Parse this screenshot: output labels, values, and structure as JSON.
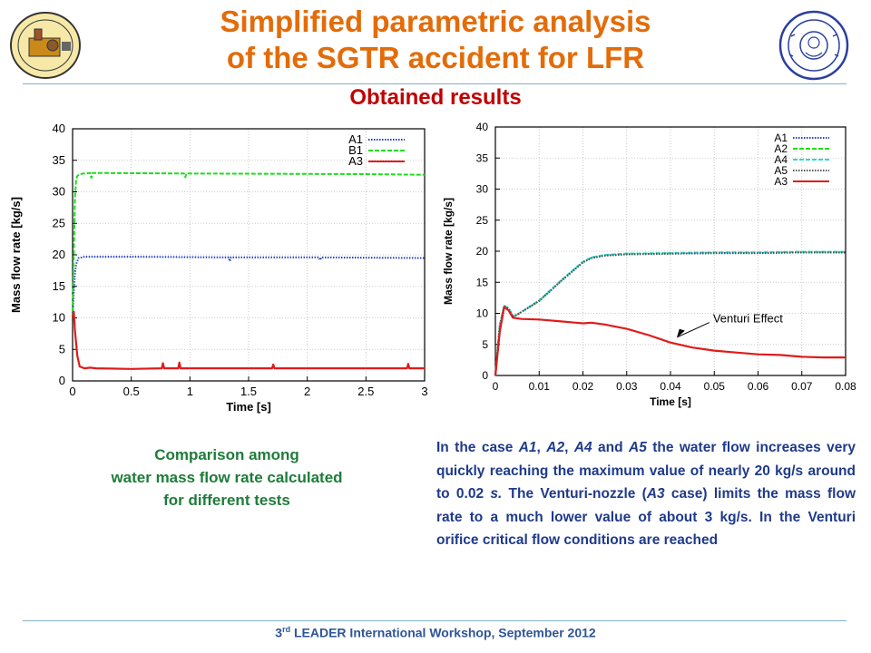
{
  "slide": {
    "title_line1": "Simplified parametric analysis",
    "title_line2": "of the SGTR accident for LFR",
    "subtitle": "Obtained results",
    "caption": [
      "Comparison among",
      "water mass flow rate calculated",
      "for different tests"
    ],
    "description": {
      "parts": [
        {
          "text": "In the case ",
          "italic": false
        },
        {
          "text": "A1",
          "italic": true
        },
        {
          "text": ", ",
          "italic": false
        },
        {
          "text": "A2",
          "italic": true
        },
        {
          "text": ", ",
          "italic": false
        },
        {
          "text": "A4",
          "italic": true
        },
        {
          "text": " and ",
          "italic": false
        },
        {
          "text": "A5",
          "italic": true
        },
        {
          "text": " the water flow increases very quickly reaching the maximum value of nearly 20 kg/s around to 0.02 ",
          "italic": false
        },
        {
          "text": "s.",
          "italic": true
        },
        {
          "text": " The Venturi-nozzle (",
          "italic": false
        },
        {
          "text": "A3",
          "italic": true
        },
        {
          "text": " case) limits the mass flow rate to a much lower value of about 3 kg/s. In the Venturi orifice critical flow conditions are reached",
          "italic": false
        }
      ]
    },
    "footer": {
      "prefix": "3",
      "sup": "rd",
      "rest": " LEADER International Workshop, September 2012"
    }
  },
  "chart_data": [
    {
      "type": "line",
      "xlabel": "Time [s]",
      "ylabel": "Mass flow rate [kg/s]",
      "xlim": [
        0,
        3
      ],
      "ylim": [
        0,
        40
      ],
      "xticks": [
        0,
        0.5,
        1,
        1.5,
        2,
        2.5,
        3
      ],
      "yticks": [
        0,
        5,
        10,
        15,
        20,
        25,
        30,
        35,
        40
      ],
      "grid": true,
      "legend_position": "top-right",
      "series": [
        {
          "name": "A1",
          "color": "#1f3fbf",
          "dash": "dotted",
          "x": [
            0,
            0.01,
            0.02,
            0.03,
            0.05,
            0.08,
            0.1,
            0.5,
            1.33,
            1.34,
            1.35,
            2.1,
            2.11,
            2.12,
            3.0
          ],
          "y": [
            10,
            14,
            17,
            18.5,
            19.5,
            19.6,
            19.7,
            19.7,
            19.6,
            19.0,
            19.6,
            19.6,
            19.2,
            19.6,
            19.5
          ]
        },
        {
          "name": "B1",
          "color": "#1fdc1f",
          "dash": "dashed",
          "x": [
            0,
            0.01,
            0.02,
            0.03,
            0.04,
            0.06,
            0.1,
            0.15,
            0.16,
            0.17,
            0.95,
            0.96,
            0.97,
            2.5,
            3.0
          ],
          "y": [
            10,
            20,
            29,
            32,
            32.5,
            32.8,
            32.9,
            33,
            32.2,
            33,
            32.9,
            32.3,
            32.9,
            32.8,
            32.7
          ]
        },
        {
          "name": "A3",
          "color": "#e01b1b",
          "dash": "solid",
          "x": [
            0,
            0.01,
            0.02,
            0.04,
            0.06,
            0.1,
            0.15,
            0.2,
            0.5,
            0.76,
            0.77,
            0.78,
            0.9,
            0.91,
            0.92,
            1.7,
            1.71,
            1.72,
            2.85,
            2.86,
            2.87,
            3.0
          ],
          "y": [
            10,
            11,
            8,
            4,
            2.3,
            2.0,
            2.1,
            2.0,
            1.9,
            2.0,
            2.8,
            2.0,
            2.0,
            2.9,
            2.0,
            2.0,
            2.6,
            2.0,
            2.0,
            2.7,
            2.0,
            2.0
          ]
        }
      ]
    },
    {
      "type": "line",
      "xlabel": "Time [s]",
      "ylabel": "Mass flow rate [kg/s]",
      "xlim": [
        0,
        0.08
      ],
      "ylim": [
        0,
        40
      ],
      "xticks": [
        0,
        0.01,
        0.02,
        0.03,
        0.04,
        0.05,
        0.06,
        0.07,
        0.08
      ],
      "yticks": [
        0,
        5,
        10,
        15,
        20,
        25,
        30,
        35,
        40
      ],
      "grid": true,
      "legend_position": "top-right",
      "annotation": {
        "text": "Venturi Effect",
        "x": 0.041,
        "y": 5.9
      },
      "series": [
        {
          "name": "A1",
          "color": "#1f3fbf",
          "dash": "dotted",
          "x": [
            0,
            0.001,
            0.002,
            0.003,
            0.004,
            0.005,
            0.01,
            0.015,
            0.02,
            0.022,
            0.025,
            0.03,
            0.04,
            0.05,
            0.06,
            0.07,
            0.08
          ],
          "y": [
            0,
            8,
            11.2,
            10.8,
            9.5,
            9.8,
            12,
            15.2,
            18.2,
            18.9,
            19.3,
            19.5,
            19.6,
            19.7,
            19.7,
            19.8,
            19.8
          ]
        },
        {
          "name": "A2",
          "color": "#1fdc1f",
          "dash": "dashed",
          "x": [
            0,
            0.001,
            0.002,
            0.003,
            0.004,
            0.005,
            0.01,
            0.015,
            0.02,
            0.022,
            0.025,
            0.03,
            0.04,
            0.05,
            0.06,
            0.07,
            0.08
          ],
          "y": [
            0,
            8,
            11.2,
            10.8,
            9.5,
            9.8,
            12,
            15.3,
            18.3,
            19.0,
            19.4,
            19.6,
            19.7,
            19.8,
            19.8,
            19.9,
            19.9
          ]
        },
        {
          "name": "A4",
          "color": "#2fd6d6",
          "dash": "dashed",
          "x": [
            0,
            0.001,
            0.002,
            0.003,
            0.004,
            0.005,
            0.01,
            0.015,
            0.02,
            0.022,
            0.025,
            0.03,
            0.04,
            0.05,
            0.06,
            0.07,
            0.08
          ],
          "y": [
            0,
            8,
            11.2,
            10.8,
            9.5,
            9.8,
            12.1,
            15.3,
            18.3,
            19.0,
            19.4,
            19.6,
            19.7,
            19.8,
            19.8,
            19.9,
            19.9
          ]
        },
        {
          "name": "A5",
          "color": "#555555",
          "dash": "dotted",
          "x": [
            0,
            0.001,
            0.002,
            0.003,
            0.004,
            0.005,
            0.01,
            0.015,
            0.02,
            0.022,
            0.025,
            0.03,
            0.04,
            0.05,
            0.06,
            0.07,
            0.08
          ],
          "y": [
            0,
            8,
            11.2,
            10.8,
            9.5,
            9.8,
            12,
            15.2,
            18.2,
            18.9,
            19.3,
            19.5,
            19.6,
            19.7,
            19.7,
            19.8,
            19.8
          ]
        },
        {
          "name": "A3",
          "color": "#e01b1b",
          "dash": "solid",
          "x": [
            0,
            0.001,
            0.002,
            0.003,
            0.004,
            0.006,
            0.01,
            0.015,
            0.02,
            0.022,
            0.025,
            0.03,
            0.035,
            0.04,
            0.045,
            0.05,
            0.055,
            0.06,
            0.065,
            0.07,
            0.075,
            0.08
          ],
          "y": [
            0,
            7,
            11,
            10.5,
            9.3,
            9.1,
            9.0,
            8.7,
            8.4,
            8.5,
            8.2,
            7.5,
            6.5,
            5.3,
            4.5,
            4.0,
            3.7,
            3.4,
            3.3,
            3.0,
            2.9,
            2.9
          ]
        }
      ]
    }
  ]
}
